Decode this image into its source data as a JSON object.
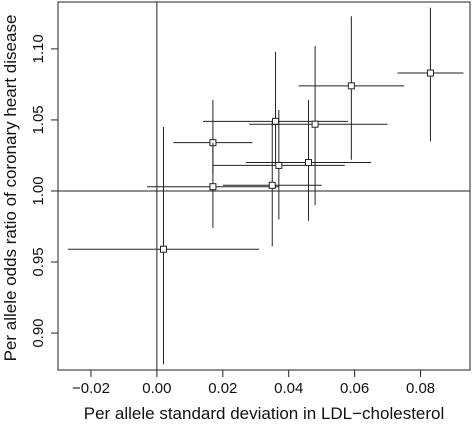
{
  "chart_data": {
    "type": "scatter",
    "title": "",
    "xlabel": "Per allele standard deviation in LDL−cholesterol",
    "ylabel": "Per allele odds ratio of coronary heart disease",
    "xlim": [
      -0.03,
      0.095
    ],
    "ylim": [
      0.874,
      1.133
    ],
    "x_ticks": [
      -0.02,
      0.0,
      0.02,
      0.04,
      0.06,
      0.08
    ],
    "x_tick_labels": [
      "−0.02",
      "0.00",
      "0.02",
      "0.04",
      "0.06",
      "0.08"
    ],
    "y_ticks": [
      0.9,
      0.95,
      1.0,
      1.05,
      1.1
    ],
    "y_tick_labels": [
      "0.90",
      "0.95",
      "1.00",
      "1.05",
      "1.10"
    ],
    "reference_lines": {
      "x": 0.0,
      "y": 1.0
    },
    "grid": false,
    "marker": "open-square",
    "color": "#222222",
    "points": [
      {
        "x": 0.002,
        "y": 0.959,
        "x_lo": -0.027,
        "x_hi": 0.031,
        "y_lo": 0.878,
        "y_hi": 1.045
      },
      {
        "x": 0.017,
        "y": 1.034,
        "x_lo": 0.005,
        "x_hi": 0.029,
        "y_lo": 1.012,
        "y_hi": 1.064
      },
      {
        "x": 0.017,
        "y": 1.003,
        "x_lo": -0.003,
        "x_hi": 0.037,
        "y_lo": 0.974,
        "y_hi": 1.034
      },
      {
        "x": 0.035,
        "y": 1.004,
        "x_lo": 0.02,
        "x_hi": 0.05,
        "y_lo": 0.961,
        "y_hi": 1.049
      },
      {
        "x": 0.036,
        "y": 1.049,
        "x_lo": 0.014,
        "x_hi": 0.058,
        "y_lo": 1.019,
        "y_hi": 1.098
      },
      {
        "x": 0.037,
        "y": 1.018,
        "x_lo": 0.017,
        "x_hi": 0.057,
        "y_lo": 0.98,
        "y_hi": 1.057
      },
      {
        "x": 0.046,
        "y": 1.02,
        "x_lo": 0.027,
        "x_hi": 0.065,
        "y_lo": 0.979,
        "y_hi": 1.064
      },
      {
        "x": 0.048,
        "y": 1.047,
        "x_lo": 0.028,
        "x_hi": 0.07,
        "y_lo": 0.99,
        "y_hi": 1.102
      },
      {
        "x": 0.059,
        "y": 1.074,
        "x_lo": 0.043,
        "x_hi": 0.075,
        "y_lo": 1.022,
        "y_hi": 1.123
      },
      {
        "x": 0.083,
        "y": 1.083,
        "x_lo": 0.073,
        "x_hi": 0.093,
        "y_lo": 1.035,
        "y_hi": 1.129
      }
    ]
  }
}
